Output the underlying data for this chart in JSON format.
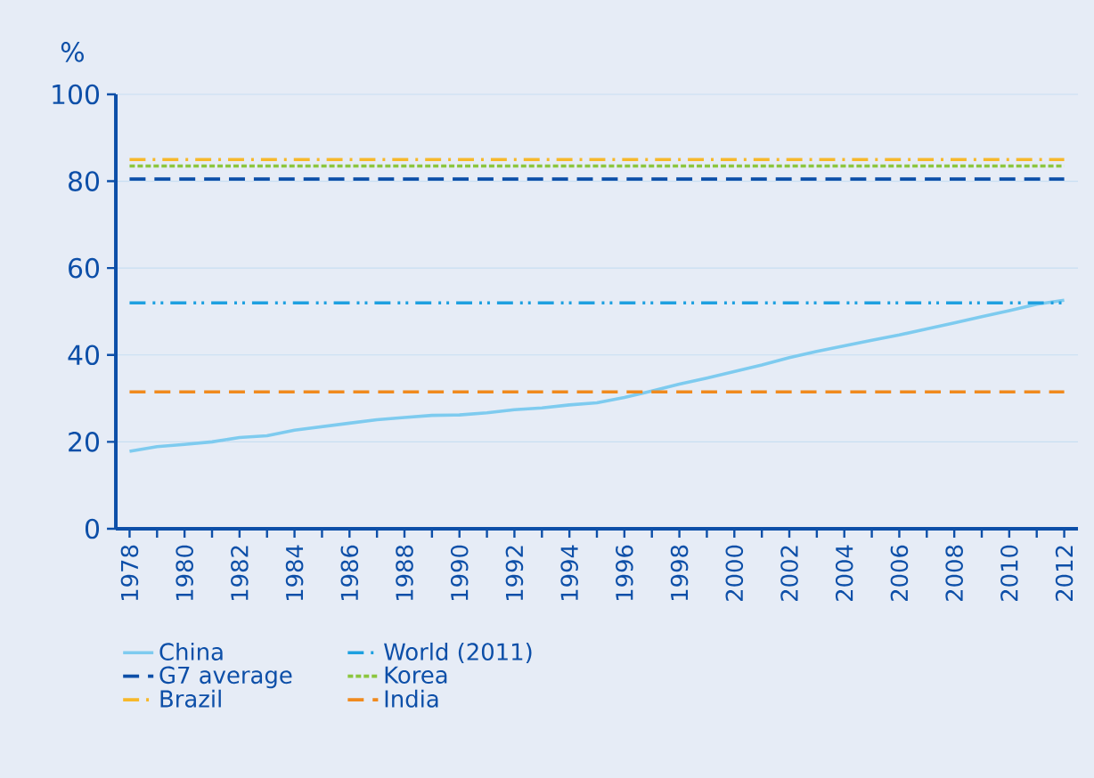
{
  "chart_data": {
    "type": "line",
    "ylabel": "%",
    "xlim": [
      1977.5,
      2012.5
    ],
    "xticks": [
      1978,
      {
        "value": 1979,
        "label": null
      },
      1980,
      {
        "value": 1981,
        "label": null
      },
      1982,
      {
        "value": 1983,
        "label": null
      },
      1984,
      {
        "value": 1985,
        "label": null
      },
      1986,
      {
        "value": 1987,
        "label": null
      },
      1988,
      {
        "value": 1989,
        "label": null
      },
      1990,
      {
        "value": 1991,
        "label": null
      },
      1992,
      {
        "value": 1993,
        "label": null
      },
      1994,
      {
        "value": 1995,
        "label": null
      },
      1996,
      {
        "value": 1997,
        "label": null
      },
      1998,
      {
        "value": 1999,
        "label": null
      },
      2000,
      {
        "value": 2001,
        "label": null
      },
      2002,
      {
        "value": 2003,
        "label": null
      },
      2004,
      {
        "value": 2005,
        "label": null
      },
      2006,
      {
        "value": 2007,
        "label": null
      },
      2008,
      {
        "value": 2009,
        "label": null
      },
      2010,
      {
        "value": 2011,
        "label": null
      },
      2012
    ],
    "ylim": [
      0,
      100
    ],
    "yticks": [
      0,
      20,
      40,
      60,
      80,
      100
    ],
    "grid": "y",
    "legend": "bottom",
    "marker": "none",
    "series": [
      {
        "name": "China",
        "color": "#7ecbef",
        "line_style": "solid",
        "x": [
          1978,
          1979,
          1980,
          1981,
          1982,
          1983,
          1984,
          1985,
          1986,
          1987,
          1988,
          1989,
          1990,
          1991,
          1992,
          1993,
          1994,
          1995,
          1996,
          1997,
          1998,
          1999,
          2000,
          2001,
          2002,
          2003,
          2004,
          2005,
          2006,
          2007,
          2008,
          2009,
          2010,
          2011,
          2012
        ],
        "values": [
          17.8,
          18.9,
          19.4,
          20,
          21,
          21.4,
          22.7,
          23.5,
          24.3,
          25.1,
          25.6,
          26.1,
          26.2,
          26.7,
          27.4,
          27.8,
          28.5,
          29,
          30.2,
          31.7,
          33.3,
          34.7,
          36.2,
          37.7,
          39.4,
          40.8,
          42.1,
          43.4,
          44.6,
          46,
          47.4,
          48.8,
          50.2,
          51.7,
          52.6
        ]
      },
      {
        "name": "World (2011)",
        "color": "#1ea0e0",
        "line_style": "dashdotdot",
        "x": [
          1978,
          2012
        ],
        "values": [
          52,
          52
        ]
      },
      {
        "name": "G7 average",
        "color": "#0d4fa8",
        "line_style": "dashed",
        "x": [
          1978,
          2012
        ],
        "values": [
          80.5,
          80.5
        ]
      },
      {
        "name": "Korea",
        "color": "#8cc63f",
        "line_style": "dotted",
        "x": [
          1978,
          2012
        ],
        "values": [
          83.5,
          83.5
        ]
      },
      {
        "name": "Brazil",
        "color": "#f7b82a",
        "line_style": "dashdot",
        "x": [
          1978,
          2012
        ],
        "values": [
          85,
          85
        ]
      },
      {
        "name": "India",
        "color": "#f08a1e",
        "line_style": "dashed",
        "x": [
          1978,
          2012
        ],
        "values": [
          31.5,
          31.5
        ]
      }
    ]
  }
}
